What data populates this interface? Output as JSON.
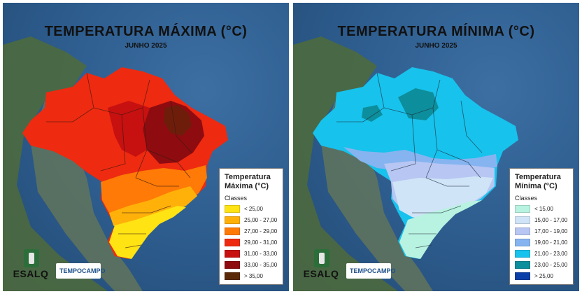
{
  "left_map": {
    "title": "TEMPERATURA MÁXIMA (°C)",
    "subtitle": "JUNHO 2025",
    "legend": {
      "title_line1": "Temperatura",
      "title_line2": "Máxima (°C)",
      "classes_label": "Classes",
      "items": [
        {
          "label": "< 25,00",
          "color": "#ffe313"
        },
        {
          "label": "25,00 - 27,00",
          "color": "#ffb10a"
        },
        {
          "label": "27,00 - 29,00",
          "color": "#ff7a06"
        },
        {
          "label": "29,00 - 31,00",
          "color": "#ee2a10"
        },
        {
          "label": "31,00 - 33,00",
          "color": "#c71010"
        },
        {
          "label": "33,00 - 35,00",
          "color": "#8e0b10"
        },
        {
          "label": "> 35,00",
          "color": "#5a2a08"
        }
      ]
    }
  },
  "right_map": {
    "title": "TEMPERATURA MÍNIMA (°C)",
    "subtitle": "JUNHO 2025",
    "legend": {
      "title_line1": "Temperatura",
      "title_line2": "Mínima (°C)",
      "classes_label": "Classes",
      "items": [
        {
          "label": "< 15,00",
          "color": "#b8f2e0"
        },
        {
          "label": "15,00 - 17,00",
          "color": "#cfe4f7"
        },
        {
          "label": "17,00 - 19,00",
          "color": "#b7c6f2"
        },
        {
          "label": "19,00 - 21,00",
          "color": "#86b4f0"
        },
        {
          "label": "21,00 - 23,00",
          "color": "#17c2ec"
        },
        {
          "label": "23,00 - 25,00",
          "color": "#0d8e9c"
        },
        {
          "label": "> 25,00",
          "color": "#0b3fa8"
        }
      ]
    }
  },
  "logos": {
    "esalq": "ESALQ",
    "tempocampo": "TEMPOCAMPO"
  }
}
